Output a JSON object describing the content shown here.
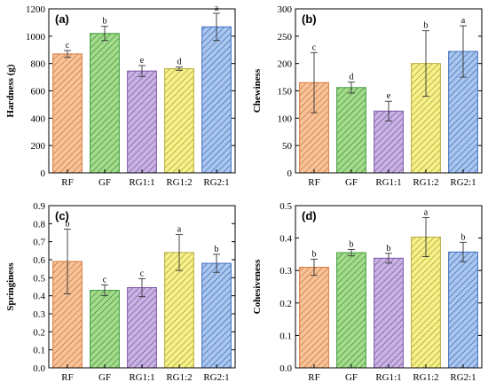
{
  "chart_data": [
    {
      "type": "bar",
      "panel_label": "(a)",
      "ylabel": "Hardness (g)",
      "categories": [
        "RF",
        "GF",
        "RG1:1",
        "RG1:2",
        "RG2:1"
      ],
      "values": [
        870,
        1020,
        745,
        762,
        1068
      ],
      "errors": [
        25,
        52,
        40,
        12,
        100
      ],
      "letters": [
        "c",
        "b",
        "e",
        "d",
        "a"
      ],
      "ylim": [
        0,
        1200
      ],
      "yticks": [
        0,
        200,
        400,
        600,
        800,
        1000,
        1200
      ]
    },
    {
      "type": "bar",
      "panel_label": "(b)",
      "ylabel": "Chewiness",
      "categories": [
        "RF",
        "GF",
        "RG1:1",
        "RG1:2",
        "RG2:1"
      ],
      "values": [
        165,
        156,
        113,
        200,
        222
      ],
      "errors": [
        55,
        10,
        18,
        60,
        47
      ],
      "letters": [
        "c",
        "d",
        "e",
        "b",
        "a"
      ],
      "ylim": [
        0,
        300
      ],
      "yticks": [
        0,
        50,
        100,
        150,
        200,
        250,
        300
      ]
    },
    {
      "type": "bar",
      "panel_label": "(c)",
      "ylabel": "Springiness",
      "categories": [
        "RF",
        "GF",
        "RG1:1",
        "RG1:2",
        "RG2:1"
      ],
      "values": [
        0.59,
        0.43,
        0.445,
        0.64,
        0.58
      ],
      "errors": [
        0.18,
        0.03,
        0.05,
        0.1,
        0.05
      ],
      "letters": [
        "b",
        "c",
        "c",
        "a",
        "b"
      ],
      "ylim": [
        0,
        0.9
      ],
      "yticks": [
        0,
        0.1,
        0.2,
        0.3,
        0.4,
        0.5,
        0.6,
        0.7,
        0.8,
        0.9
      ]
    },
    {
      "type": "bar",
      "panel_label": "(d)",
      "ylabel": "Cohesiveness",
      "categories": [
        "RF",
        "GF",
        "RG1:1",
        "RG1:2",
        "RG2:1"
      ],
      "values": [
        0.31,
        0.355,
        0.338,
        0.403,
        0.357
      ],
      "errors": [
        0.025,
        0.01,
        0.015,
        0.06,
        0.03
      ],
      "letters": [
        "b",
        "b",
        "b",
        "a",
        "b"
      ],
      "ylim": [
        0,
        0.5
      ],
      "yticks": [
        0,
        0.1,
        0.2,
        0.3,
        0.4,
        0.5
      ]
    }
  ],
  "series_colors": [
    {
      "fill": "#f7c49a",
      "stroke": "#d9763a",
      "hatch": "#c4612a"
    },
    {
      "fill": "#a4dc8c",
      "stroke": "#3e9a3e",
      "hatch": "#2f7f2f"
    },
    {
      "fill": "#c9b3e3",
      "stroke": "#7a55a8",
      "hatch": "#6a4494"
    },
    {
      "fill": "#f6f18a",
      "stroke": "#b9a93a",
      "hatch": "#9c8f20"
    },
    {
      "fill": "#a9c6ef",
      "stroke": "#3d6fc2",
      "hatch": "#2e5aa5"
    }
  ]
}
